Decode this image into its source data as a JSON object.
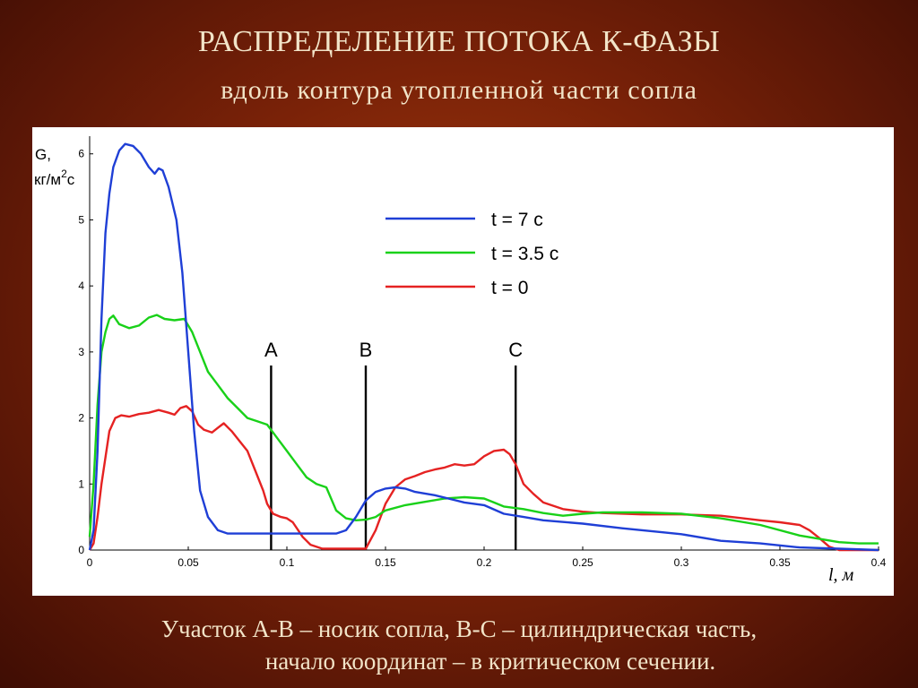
{
  "slide": {
    "title": "РАСПРЕДЕЛЕНИЕ ПОТОКА К-ФАЗЫ",
    "subtitle": "вдоль контура утопленной части сопла",
    "caption_line1": "Участок А-В – носик сопла, В-С – цилиндрическая часть,",
    "caption_line2": "начало координат – в критическом сечении."
  },
  "chart_data": {
    "type": "line",
    "title": "",
    "xlabel": "l, м",
    "ylabel_line1": "G,",
    "ylabel_line2": "кг/м",
    "ylabel_sup": "2",
    "ylabel_suffix": "с",
    "xlim": [
      0,
      0.4
    ],
    "ylim": [
      0,
      6.2
    ],
    "xticks": [
      0,
      0.05,
      0.1,
      0.15,
      0.2,
      0.25,
      0.3,
      0.35,
      0.4
    ],
    "xtick_labels": [
      "0",
      "0.05",
      "0.1",
      "0.15",
      "0.2",
      "0.25",
      "0.3",
      "0.35",
      "0.4"
    ],
    "yticks": [
      0,
      1,
      2,
      3,
      4,
      5,
      6
    ],
    "ytick_labels": [
      "0",
      "1",
      "2",
      "3",
      "4",
      "5",
      "6"
    ],
    "grid": false,
    "legend_position": "top-right",
    "markers": [
      {
        "label": "A",
        "x": 0.092
      },
      {
        "label": "B",
        "x": 0.14
      },
      {
        "label": "C",
        "x": 0.216
      }
    ],
    "series": [
      {
        "name": "t = 7 с",
        "color": "#1f3fd6",
        "points": [
          [
            0,
            0
          ],
          [
            0.002,
            0.3
          ],
          [
            0.004,
            1.5
          ],
          [
            0.006,
            3.5
          ],
          [
            0.008,
            4.8
          ],
          [
            0.01,
            5.4
          ],
          [
            0.012,
            5.8
          ],
          [
            0.015,
            6.05
          ],
          [
            0.018,
            6.15
          ],
          [
            0.022,
            6.12
          ],
          [
            0.026,
            6.0
          ],
          [
            0.03,
            5.8
          ],
          [
            0.033,
            5.7
          ],
          [
            0.035,
            5.78
          ],
          [
            0.037,
            5.75
          ],
          [
            0.04,
            5.5
          ],
          [
            0.044,
            5.0
          ],
          [
            0.047,
            4.2
          ],
          [
            0.05,
            3.0
          ],
          [
            0.053,
            1.8
          ],
          [
            0.056,
            0.9
          ],
          [
            0.06,
            0.5
          ],
          [
            0.065,
            0.3
          ],
          [
            0.07,
            0.25
          ],
          [
            0.09,
            0.25
          ],
          [
            0.11,
            0.25
          ],
          [
            0.125,
            0.25
          ],
          [
            0.13,
            0.3
          ],
          [
            0.135,
            0.5
          ],
          [
            0.14,
            0.75
          ],
          [
            0.145,
            0.88
          ],
          [
            0.15,
            0.93
          ],
          [
            0.155,
            0.95
          ],
          [
            0.16,
            0.93
          ],
          [
            0.165,
            0.88
          ],
          [
            0.175,
            0.83
          ],
          [
            0.19,
            0.72
          ],
          [
            0.2,
            0.68
          ],
          [
            0.21,
            0.55
          ],
          [
            0.22,
            0.5
          ],
          [
            0.23,
            0.45
          ],
          [
            0.25,
            0.4
          ],
          [
            0.27,
            0.33
          ],
          [
            0.29,
            0.27
          ],
          [
            0.3,
            0.24
          ],
          [
            0.32,
            0.14
          ],
          [
            0.34,
            0.1
          ],
          [
            0.36,
            0.04
          ],
          [
            0.38,
            0.02
          ],
          [
            0.4,
            0
          ]
        ]
      },
      {
        "name": "t = 3.5 с",
        "color": "#19d119",
        "points": [
          [
            0,
            0.2
          ],
          [
            0.002,
            1.0
          ],
          [
            0.004,
            2.2
          ],
          [
            0.006,
            3.0
          ],
          [
            0.008,
            3.3
          ],
          [
            0.01,
            3.5
          ],
          [
            0.012,
            3.55
          ],
          [
            0.015,
            3.42
          ],
          [
            0.02,
            3.36
          ],
          [
            0.025,
            3.4
          ],
          [
            0.03,
            3.52
          ],
          [
            0.034,
            3.56
          ],
          [
            0.038,
            3.5
          ],
          [
            0.043,
            3.48
          ],
          [
            0.048,
            3.5
          ],
          [
            0.052,
            3.3
          ],
          [
            0.056,
            3.0
          ],
          [
            0.06,
            2.7
          ],
          [
            0.065,
            2.5
          ],
          [
            0.07,
            2.3
          ],
          [
            0.075,
            2.15
          ],
          [
            0.08,
            2.0
          ],
          [
            0.085,
            1.95
          ],
          [
            0.09,
            1.9
          ],
          [
            0.095,
            1.7
          ],
          [
            0.1,
            1.5
          ],
          [
            0.105,
            1.3
          ],
          [
            0.11,
            1.1
          ],
          [
            0.115,
            1.0
          ],
          [
            0.12,
            0.95
          ],
          [
            0.125,
            0.6
          ],
          [
            0.13,
            0.48
          ],
          [
            0.135,
            0.45
          ],
          [
            0.14,
            0.46
          ],
          [
            0.145,
            0.5
          ],
          [
            0.15,
            0.6
          ],
          [
            0.16,
            0.68
          ],
          [
            0.17,
            0.73
          ],
          [
            0.18,
            0.78
          ],
          [
            0.19,
            0.8
          ],
          [
            0.2,
            0.78
          ],
          [
            0.205,
            0.72
          ],
          [
            0.21,
            0.66
          ],
          [
            0.22,
            0.62
          ],
          [
            0.23,
            0.56
          ],
          [
            0.24,
            0.52
          ],
          [
            0.25,
            0.55
          ],
          [
            0.26,
            0.57
          ],
          [
            0.28,
            0.57
          ],
          [
            0.3,
            0.55
          ],
          [
            0.32,
            0.48
          ],
          [
            0.34,
            0.38
          ],
          [
            0.36,
            0.22
          ],
          [
            0.38,
            0.12
          ],
          [
            0.39,
            0.1
          ],
          [
            0.4,
            0.1
          ]
        ]
      },
      {
        "name": "t = 0",
        "color": "#e52222",
        "points": [
          [
            0,
            0
          ],
          [
            0.002,
            0.1
          ],
          [
            0.004,
            0.5
          ],
          [
            0.006,
            1.0
          ],
          [
            0.008,
            1.4
          ],
          [
            0.01,
            1.8
          ],
          [
            0.013,
            2.0
          ],
          [
            0.016,
            2.04
          ],
          [
            0.02,
            2.02
          ],
          [
            0.025,
            2.06
          ],
          [
            0.03,
            2.08
          ],
          [
            0.035,
            2.12
          ],
          [
            0.04,
            2.08
          ],
          [
            0.043,
            2.05
          ],
          [
            0.046,
            2.15
          ],
          [
            0.049,
            2.18
          ],
          [
            0.052,
            2.1
          ],
          [
            0.055,
            1.9
          ],
          [
            0.058,
            1.82
          ],
          [
            0.062,
            1.78
          ],
          [
            0.065,
            1.85
          ],
          [
            0.068,
            1.92
          ],
          [
            0.072,
            1.8
          ],
          [
            0.076,
            1.65
          ],
          [
            0.08,
            1.5
          ],
          [
            0.084,
            1.2
          ],
          [
            0.088,
            0.9
          ],
          [
            0.09,
            0.7
          ],
          [
            0.093,
            0.55
          ],
          [
            0.097,
            0.5
          ],
          [
            0.1,
            0.48
          ],
          [
            0.103,
            0.42
          ],
          [
            0.108,
            0.2
          ],
          [
            0.112,
            0.08
          ],
          [
            0.118,
            0.02
          ],
          [
            0.125,
            0.02
          ],
          [
            0.14,
            0.02
          ],
          [
            0.145,
            0.3
          ],
          [
            0.15,
            0.7
          ],
          [
            0.155,
            0.95
          ],
          [
            0.16,
            1.07
          ],
          [
            0.165,
            1.12
          ],
          [
            0.17,
            1.18
          ],
          [
            0.175,
            1.22
          ],
          [
            0.18,
            1.25
          ],
          [
            0.185,
            1.3
          ],
          [
            0.19,
            1.28
          ],
          [
            0.195,
            1.3
          ],
          [
            0.2,
            1.42
          ],
          [
            0.205,
            1.5
          ],
          [
            0.21,
            1.52
          ],
          [
            0.213,
            1.45
          ],
          [
            0.216,
            1.3
          ],
          [
            0.22,
            1.0
          ],
          [
            0.225,
            0.85
          ],
          [
            0.23,
            0.72
          ],
          [
            0.24,
            0.62
          ],
          [
            0.25,
            0.58
          ],
          [
            0.26,
            0.56
          ],
          [
            0.28,
            0.54
          ],
          [
            0.3,
            0.54
          ],
          [
            0.32,
            0.52
          ],
          [
            0.34,
            0.45
          ],
          [
            0.35,
            0.42
          ],
          [
            0.355,
            0.4
          ],
          [
            0.36,
            0.38
          ],
          [
            0.365,
            0.3
          ],
          [
            0.37,
            0.18
          ],
          [
            0.375,
            0.05
          ],
          [
            0.38,
            0
          ],
          [
            0.4,
            0
          ]
        ]
      }
    ]
  }
}
